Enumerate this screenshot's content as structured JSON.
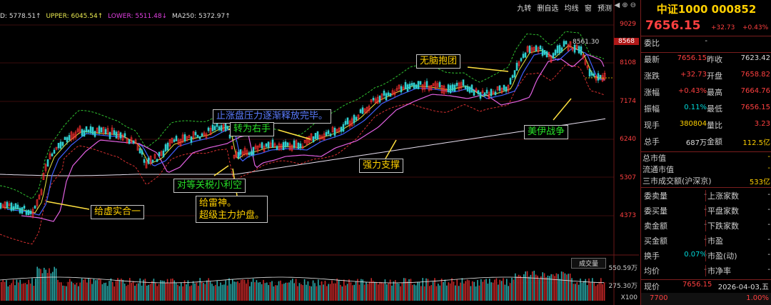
{
  "indicators": {
    "mid": "D: 5778.51↑",
    "upper": "UPPER: 6045.54↑",
    "lower": "LOWER: 5511.48↓",
    "ma250": "MA250: 5372.97↑"
  },
  "toolbar": [
    "九转",
    "删自选",
    "均线",
    "窗",
    "预测"
  ],
  "price_axis": {
    "labels": [
      "9029",
      "8108",
      "7174",
      "6240",
      "5307",
      "4373"
    ],
    "highlight": "8568"
  },
  "peak_label": "8561.30",
  "annotations": {
    "no_brain": "无脑抱团",
    "selling_done": "止涨盘压力逐渐释放完毕。",
    "turn_right": "转为右手",
    "strong_support": "强力支撑",
    "us_iran_war": "美伊战争",
    "tariff_bad": "对等关税小利空",
    "god_of_thunder_1": "给雷神。",
    "god_of_thunder_2": "超级主力护盘。",
    "virtual_real": "给虚实合一"
  },
  "volume": {
    "tab": "成交量",
    "labels": [
      "550.59万",
      "275.30万",
      "X100"
    ]
  },
  "panel": {
    "title": "中证1000 000852",
    "price": "7656.15",
    "change": "+32.73",
    "pct": "+0.43%",
    "weibi_label": "委比",
    "weibi_val": "-",
    "rows": [
      {
        "l1": "最新",
        "v1": "7656.15",
        "c1": "red",
        "l2": "昨收",
        "v2": "7623.42",
        "c2": "wht"
      },
      {
        "l1": "涨跌",
        "v1": "+32.73",
        "c1": "red",
        "l2": "开盘",
        "v2": "7658.82",
        "c2": "red"
      },
      {
        "l1": "涨幅",
        "v1": "+0.43%",
        "c1": "red",
        "l2": "最高",
        "v2": "7664.76",
        "c2": "red"
      },
      {
        "l1": "振幅",
        "v1": "0.11%",
        "c1": "cyan",
        "l2": "最低",
        "v2": "7656.15",
        "c2": "red"
      },
      {
        "l1": "现手",
        "v1": "380804",
        "c1": "yel",
        "l2": "量比",
        "v2": "3.23",
        "c2": "red"
      },
      {
        "l1": "总手",
        "v1": "687万",
        "c1": "wht",
        "l2": "金额",
        "v2": "112.5亿",
        "c2": "yel"
      }
    ],
    "mkt": [
      {
        "l": "总市值",
        "v": "-"
      },
      {
        "l": "流通市值",
        "v": "-"
      },
      {
        "l": "三市成交额(沪深京)",
        "v": "533亿"
      }
    ],
    "orders": [
      {
        "l1": "委卖量",
        "v1": "-",
        "l2": "上涨家数",
        "v2": "-"
      },
      {
        "l1": "委买量",
        "v1": "-",
        "l2": "平盘家数",
        "v2": "-"
      },
      {
        "l1": "卖金额",
        "v1": "-",
        "l2": "下跌家数",
        "v2": "-"
      },
      {
        "l1": "买金额",
        "v1": "-",
        "l2": "市盈",
        "v2": "-"
      },
      {
        "l1": "换手",
        "v1": "0.07%",
        "l2": "市盈(动)",
        "v2": "-"
      },
      {
        "l1": "均价",
        "v1": "-",
        "l2": "市净率",
        "v2": "-"
      }
    ],
    "bottom": {
      "now_label": "现价",
      "now_val": "7656.15",
      "date": "2026-04-03,五",
      "b1": "7700",
      "b2": "1.00%"
    }
  }
}
